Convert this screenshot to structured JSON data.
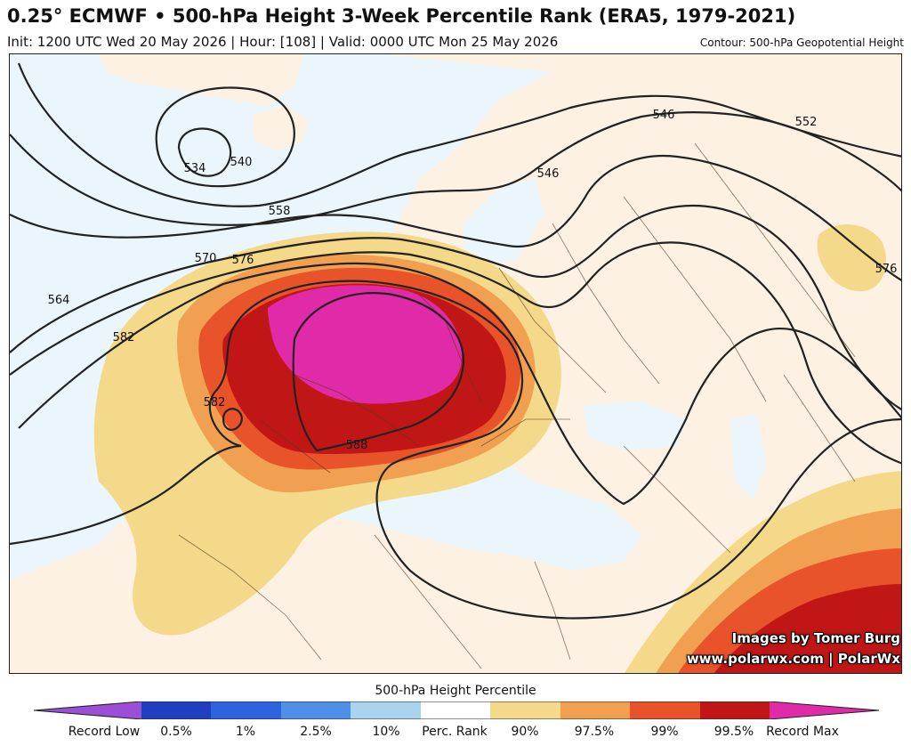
{
  "header": {
    "title": "0.25° ECMWF • 500-hPa Height 3-Week Percentile Rank (ERA5, 1979-2021)",
    "subtitle": "Init: 1200 UTC Wed 20 May 2026 | Hour: [108] | Valid: 0000 UTC Mon 25 May 2026",
    "contour_note": "Contour: 500-hPa Geopotential Height"
  },
  "map": {
    "contour_labels": [
      "534",
      "540",
      "546",
      "546",
      "552",
      "558",
      "564",
      "570",
      "576",
      "576",
      "582",
      "582",
      "588"
    ],
    "credits": [
      "Images by Tomer Burg",
      "www.polarwx.com | PolarWx"
    ]
  },
  "colorbar": {
    "title": "500-hPa Height Percentile",
    "labels": [
      "Record Low",
      "0.5%",
      "1%",
      "2.5%",
      "10%",
      "Perc. Rank",
      "90%",
      "97.5%",
      "99%",
      "99.5%",
      "Record Max"
    ],
    "colors": [
      "#9b4fd6",
      "#1f3fbf",
      "#2e63e0",
      "#4f8fe8",
      "#a8d4f0",
      "#ffffff",
      "#f5d98a",
      "#f0a050",
      "#e8532a",
      "#c01616",
      "#e02aa8"
    ]
  }
}
